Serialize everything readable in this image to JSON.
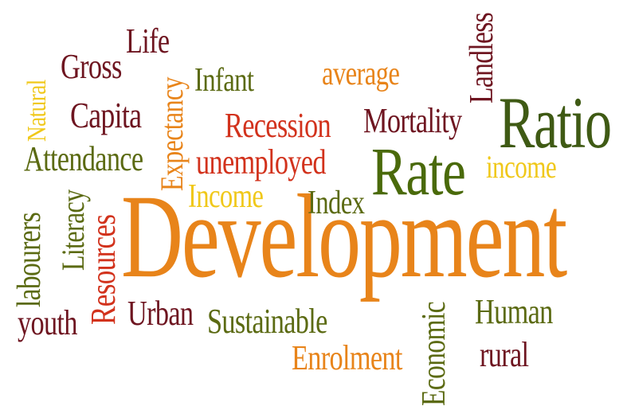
{
  "words": {
    "development": "Development",
    "rate": "Rate",
    "ratio": "Ratio",
    "life": "Life",
    "gross": "Gross",
    "natural": "Natural",
    "capita": "Capita",
    "expectancy": "Expectancy",
    "infant": "Infant",
    "average": "average",
    "landless": "Landless",
    "recession": "Recession",
    "mortality": "Mortality",
    "attendance": "Attendance",
    "unemployed": "unemployed",
    "income_lower": "income",
    "income_cap": "Income",
    "index": "Index",
    "literacy": "Literacy",
    "labourers": "labourers",
    "resources": "Resources",
    "youth": "youth",
    "urban": "Urban",
    "sustainable": "Sustainable",
    "enrolment": "Enrolment",
    "economic": "Economic",
    "human": "Human",
    "rural": "rural"
  },
  "colors": {
    "maroon": "#6e1520",
    "orange": "#e8841a",
    "olive": "#5b6a12",
    "green": "#4a6a0a",
    "red": "#d2321c",
    "yellow": "#f0c81a",
    "darkgreen": "#3f5a14"
  }
}
